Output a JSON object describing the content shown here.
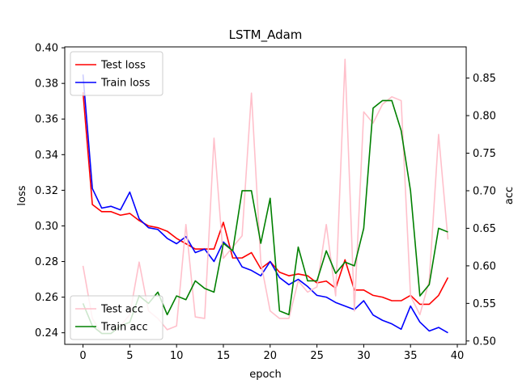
{
  "chart_data": {
    "type": "line",
    "title": "LSTM_Adam",
    "xlabel": "epoch",
    "ylabel_left": "loss",
    "ylabel_right": "acc",
    "x": [
      0,
      1,
      2,
      3,
      4,
      5,
      6,
      7,
      8,
      9,
      10,
      11,
      12,
      13,
      14,
      15,
      16,
      17,
      18,
      19,
      20,
      21,
      22,
      23,
      24,
      25,
      26,
      27,
      28,
      29,
      30,
      31,
      32,
      33,
      34,
      35,
      36,
      37,
      38,
      39
    ],
    "xlim": [
      -1.95,
      40.95
    ],
    "ylim_left": [
      0.2335,
      0.4005
    ],
    "ylim_right": [
      0.4955,
      0.8915
    ],
    "xticks": [
      0,
      5,
      10,
      15,
      20,
      25,
      30,
      35,
      40
    ],
    "yticks_left": [
      0.24,
      0.26,
      0.28,
      0.3,
      0.32,
      0.34,
      0.36,
      0.38,
      0.4
    ],
    "yticks_left_labels": [
      "0.24",
      "0.26",
      "0.28",
      "0.30",
      "0.32",
      "0.34",
      "0.36",
      "0.38",
      "0.40"
    ],
    "yticks_right": [
      0.5,
      0.55,
      0.6,
      0.65,
      0.7,
      0.75,
      0.8,
      0.85
    ],
    "yticks_right_labels": [
      "0.50",
      "0.55",
      "0.60",
      "0.65",
      "0.70",
      "0.75",
      "0.80",
      "0.85"
    ],
    "series": [
      {
        "name": "Test loss",
        "axis": "left",
        "color": "#ff0000",
        "values": [
          0.375,
          0.312,
          0.308,
          0.308,
          0.306,
          0.307,
          0.303,
          0.3,
          0.299,
          0.297,
          0.293,
          0.29,
          0.287,
          0.287,
          0.287,
          0.302,
          0.282,
          0.282,
          0.285,
          0.276,
          0.28,
          0.274,
          0.272,
          0.273,
          0.272,
          0.268,
          0.269,
          0.265,
          0.281,
          0.264,
          0.264,
          0.261,
          0.26,
          0.258,
          0.258,
          0.261,
          0.256,
          0.256,
          0.261,
          0.271
        ]
      },
      {
        "name": "Train loss",
        "axis": "left",
        "color": "#0000ff",
        "values": [
          0.385,
          0.321,
          0.31,
          0.311,
          0.309,
          0.319,
          0.304,
          0.299,
          0.298,
          0.293,
          0.29,
          0.294,
          0.285,
          0.287,
          0.28,
          0.291,
          0.286,
          0.277,
          0.275,
          0.272,
          0.28,
          0.271,
          0.267,
          0.27,
          0.266,
          0.261,
          0.26,
          0.257,
          0.255,
          0.253,
          0.258,
          0.25,
          0.247,
          0.245,
          0.242,
          0.255,
          0.246,
          0.241,
          0.243,
          0.24
        ]
      },
      {
        "name": "Test acc",
        "axis": "right",
        "color": "#ffc0cb",
        "values": [
          0.6,
          0.53,
          0.51,
          0.51,
          0.52,
          0.535,
          0.605,
          0.54,
          0.53,
          0.515,
          0.52,
          0.655,
          0.532,
          0.53,
          0.77,
          0.61,
          0.625,
          0.64,
          0.83,
          0.605,
          0.54,
          0.53,
          0.53,
          0.58,
          0.565,
          0.572,
          0.655,
          0.56,
          0.875,
          0.54,
          0.805,
          0.79,
          0.815,
          0.825,
          0.82,
          0.56,
          0.535,
          0.58,
          0.775,
          0.635
        ]
      },
      {
        "name": "Train acc",
        "axis": "right",
        "color": "#008000",
        "values": [
          0.55,
          0.52,
          0.51,
          0.51,
          0.52,
          0.525,
          0.56,
          0.55,
          0.565,
          0.535,
          0.56,
          0.555,
          0.58,
          0.57,
          0.565,
          0.63,
          0.62,
          0.7,
          0.7,
          0.63,
          0.69,
          0.54,
          0.535,
          0.625,
          0.58,
          0.58,
          0.62,
          0.59,
          0.605,
          0.6,
          0.65,
          0.81,
          0.82,
          0.82,
          0.78,
          0.7,
          0.56,
          0.575,
          0.65,
          0.645
        ]
      }
    ],
    "legends": [
      {
        "placement": "upper-left",
        "entries": [
          0,
          1
        ]
      },
      {
        "placement": "lower-left",
        "entries": [
          2,
          3
        ]
      }
    ]
  }
}
